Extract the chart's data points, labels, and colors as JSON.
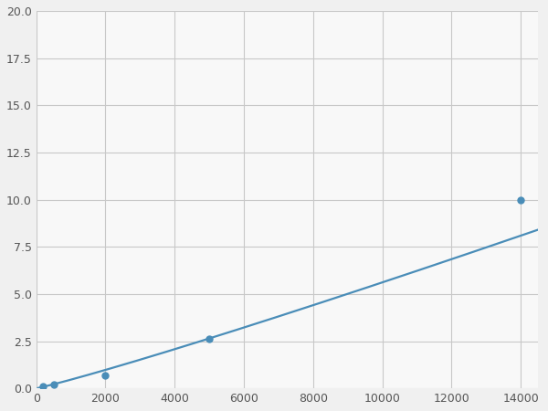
{
  "x_data": [
    200,
    500,
    2000,
    5000,
    14000
  ],
  "y_data": [
    0.1,
    0.2,
    0.7,
    2.6,
    10.0
  ],
  "line_color": "#4a8db8",
  "marker_color": "#4a8db8",
  "marker_size": 5,
  "line_width": 1.6,
  "xlim": [
    0,
    14500
  ],
  "ylim": [
    0,
    20.0
  ],
  "xticks": [
    0,
    2000,
    4000,
    6000,
    8000,
    10000,
    12000,
    14000
  ],
  "yticks": [
    0.0,
    2.5,
    5.0,
    7.5,
    10.0,
    12.5,
    15.0,
    17.5,
    20.0
  ],
  "grid_color": "#c8c8c8",
  "background_color": "#f8f8f8",
  "figure_facecolor": "#f0f0f0"
}
